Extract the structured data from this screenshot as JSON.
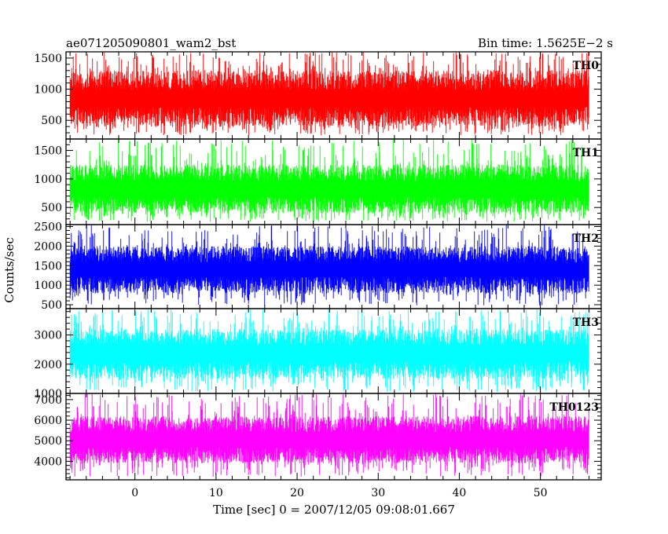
{
  "chart_data": {
    "type": "line",
    "title_left": "ae071205090801_wam2_bst",
    "title_right": "Bin time: 1.5625E−2 s",
    "xlabel": "Time [sec] 0 = 2007/12/05 09:08:01.667",
    "ylabel": "Counts/sec",
    "xlim": [
      -8.5,
      57.5
    ],
    "x_data_range": [
      -8,
      56
    ],
    "x_ticks": [
      0,
      10,
      20,
      30,
      40,
      50
    ],
    "x_tick_labels": [
      "0",
      "10",
      "20",
      "30",
      "40",
      "50"
    ],
    "grid": false,
    "panels": [
      {
        "name": "TH0",
        "color": "#ff0000",
        "ylim": [
          200,
          1600
        ],
        "y_ticks": [
          500,
          1000,
          1500
        ],
        "y_tick_labels": [
          "500",
          "1000",
          "1500"
        ],
        "typical_range": [
          400,
          1300
        ],
        "extreme_range": [
          260,
          1600
        ]
      },
      {
        "name": "TH1",
        "color": "#00ff00",
        "ylim": [
          200,
          1700
        ],
        "y_ticks": [
          500,
          1000,
          1500
        ],
        "y_tick_labels": [
          "500",
          "1000",
          "1500"
        ],
        "typical_range": [
          400,
          1250
        ],
        "extreme_range": [
          250,
          1700
        ]
      },
      {
        "name": "TH2",
        "color": "#0000ff",
        "ylim": [
          400,
          2550
        ],
        "y_ticks": [
          500,
          1000,
          1500,
          2000,
          2500
        ],
        "y_tick_labels": [
          "500",
          "1000",
          "1500",
          "2000",
          "2500"
        ],
        "typical_range": [
          800,
          2000
        ],
        "extreme_range": [
          480,
          2550
        ]
      },
      {
        "name": "TH3",
        "color": "#00ffff",
        "ylim": [
          1000,
          3900
        ],
        "y_ticks": [
          1000,
          2000,
          3000
        ],
        "y_tick_labels": [
          "1000",
          "2000",
          "3000"
        ],
        "typical_range": [
          1500,
          3200
        ],
        "extreme_range": [
          1050,
          3900
        ]
      },
      {
        "name": "TH0123",
        "color": "#ff00ff",
        "ylim": [
          3100,
          7300
        ],
        "y_ticks": [
          4000,
          5000,
          6000,
          7000
        ],
        "y_tick_labels": [
          "4000",
          "5000",
          "6000",
          "7000"
        ],
        "typical_range": [
          3900,
          6200
        ],
        "extreme_range": [
          3250,
          7300
        ]
      }
    ]
  }
}
